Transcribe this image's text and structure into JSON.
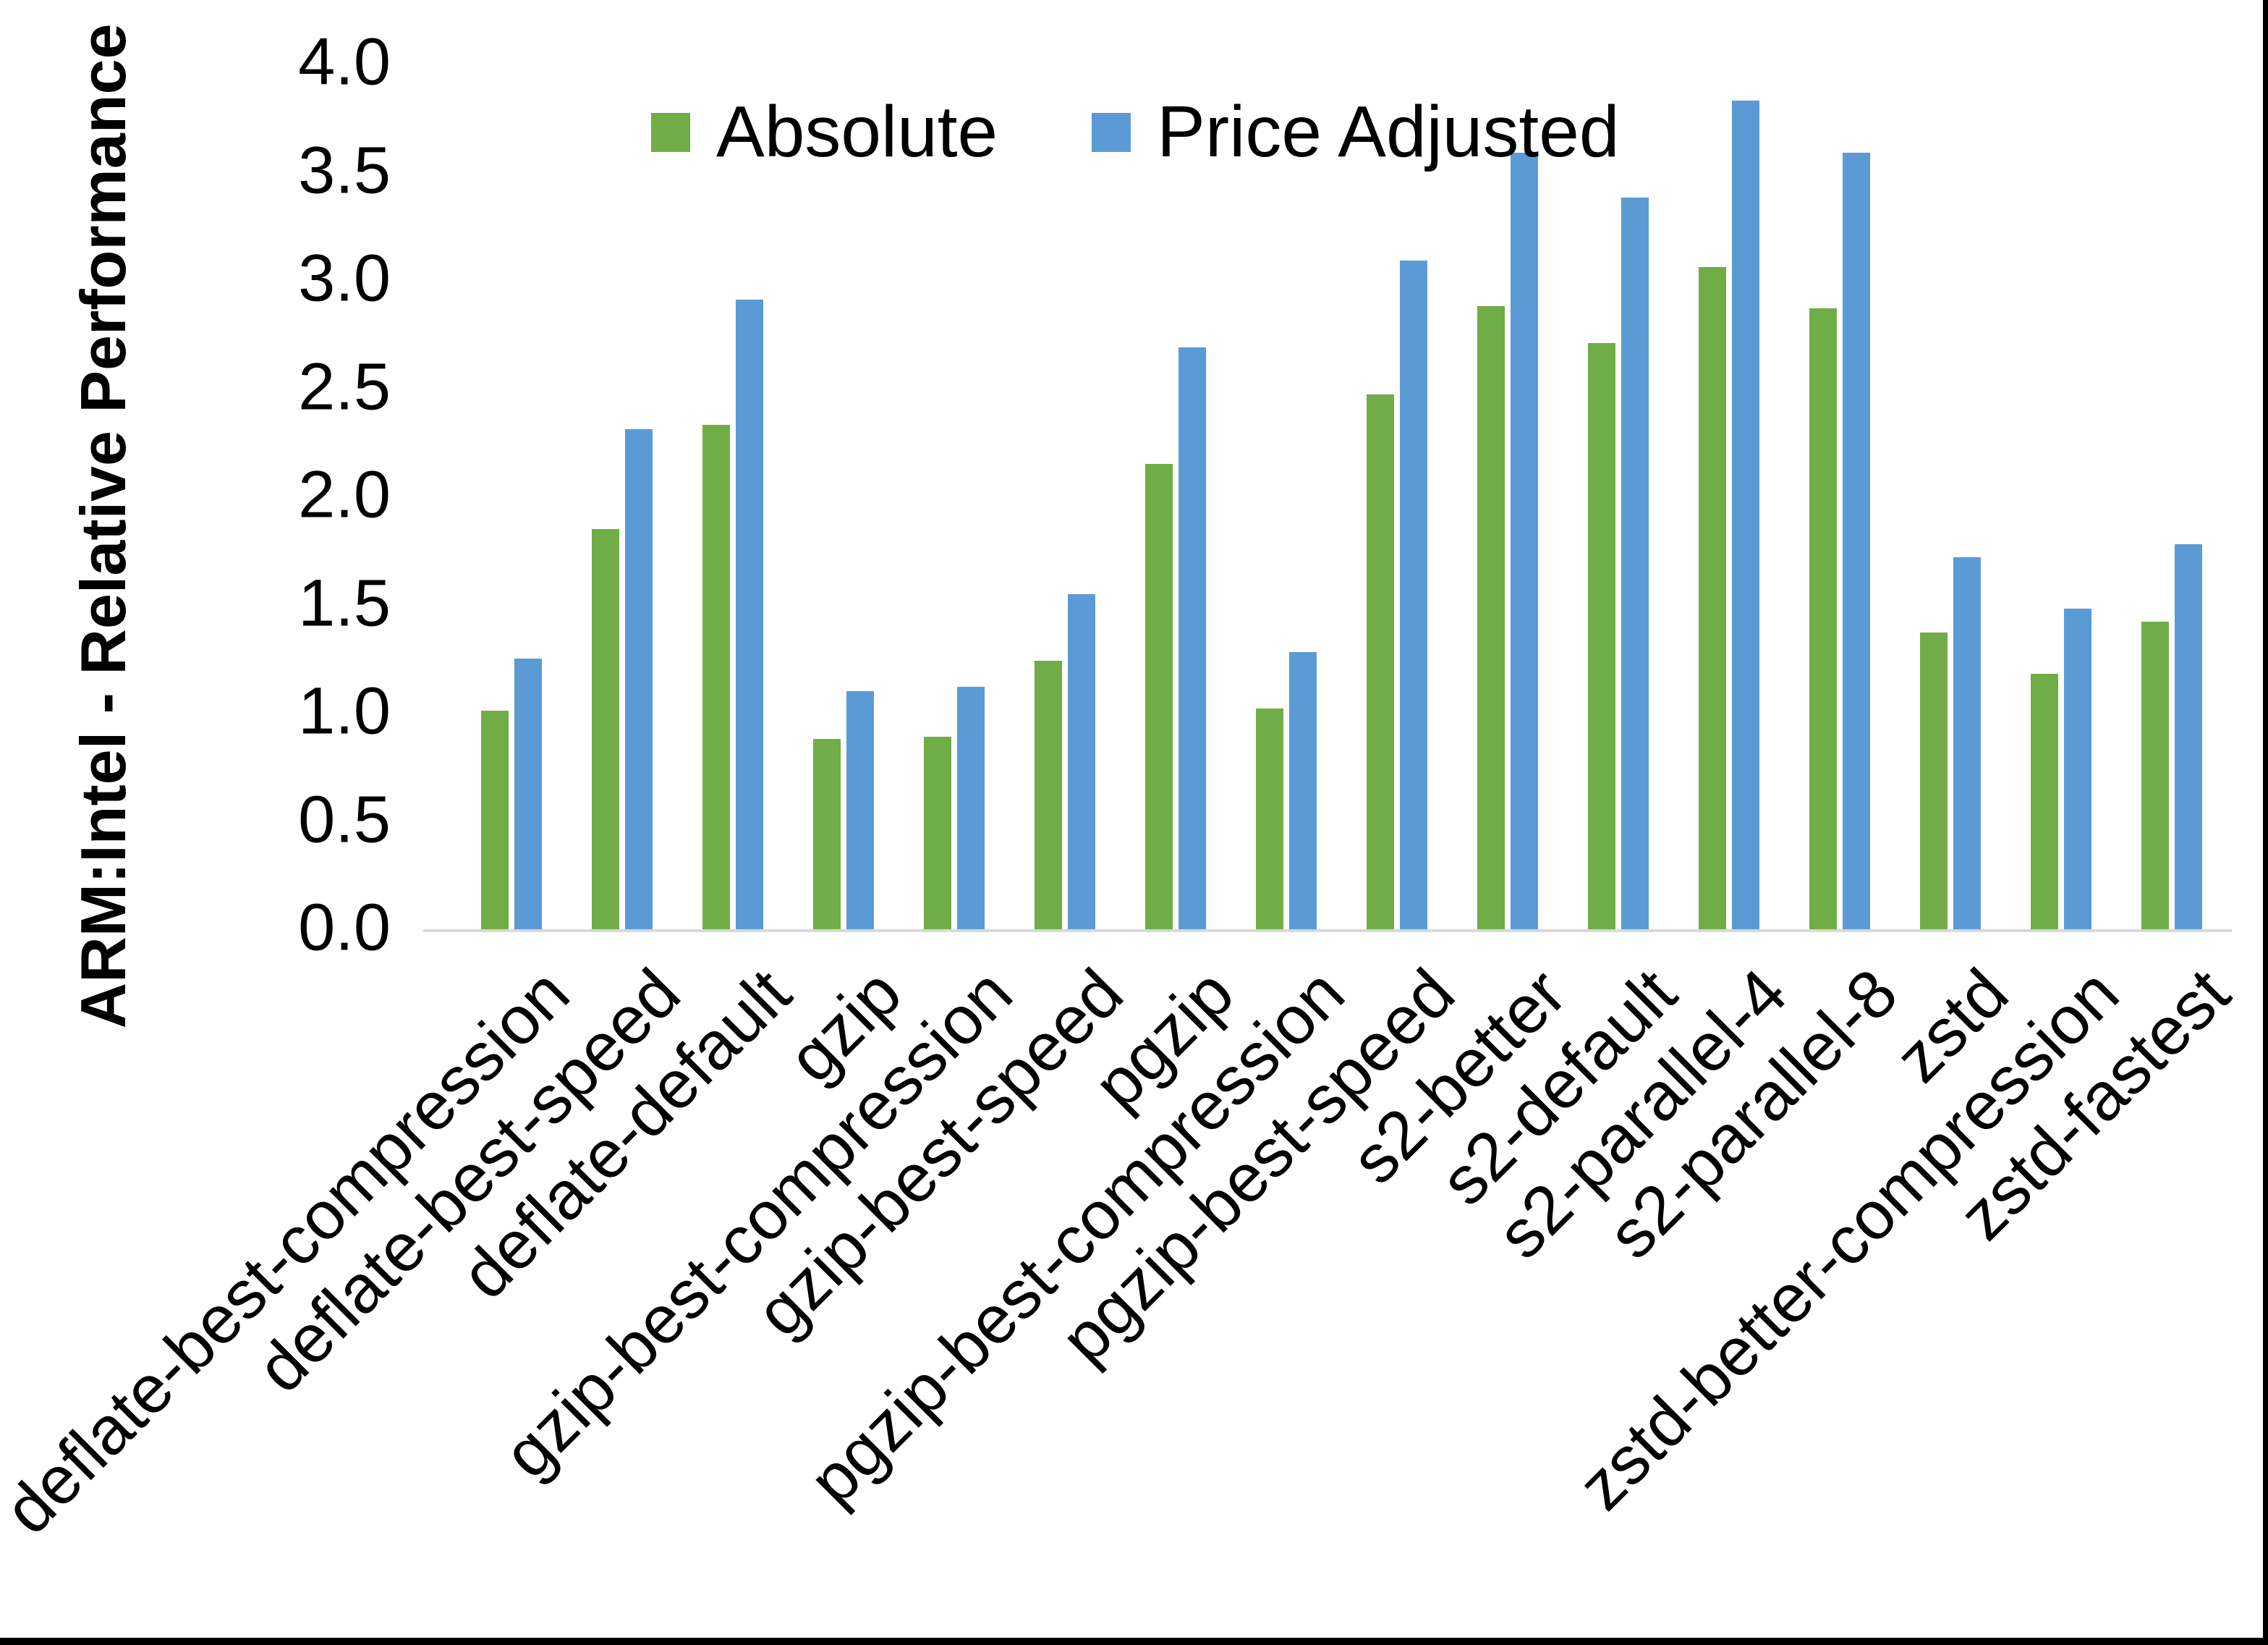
{
  "chart_data": {
    "type": "bar",
    "title": "",
    "xlabel": "",
    "ylabel": "ARM:Intel - Relative Performance",
    "ylim": [
      0.0,
      4.0
    ],
    "y_ticks": [
      "0.0",
      "0.5",
      "1.0",
      "1.5",
      "2.0",
      "2.5",
      "3.0",
      "3.5",
      "4.0"
    ],
    "grid": false,
    "legend_position": "top-center",
    "categories": [
      "deflate-best-compression",
      "deflate-best-speed",
      "deflate-default",
      "gzip",
      "gzip-best-compression",
      "gzip-best-speed",
      "pgzip",
      "pgzip-best-compression",
      "pgzip-best-speed",
      "s2-better",
      "s2-default",
      "s2-parallel-4",
      "s2-parallel-8",
      "zstd",
      "zstd-better-compression",
      "zstd-fastest"
    ],
    "series": [
      {
        "name": "Absolute",
        "color": "#70AD47",
        "values": [
          1.01,
          1.85,
          2.33,
          0.88,
          0.89,
          1.24,
          2.15,
          1.02,
          2.47,
          2.88,
          2.71,
          3.06,
          2.87,
          1.37,
          1.18,
          1.42
        ]
      },
      {
        "name": "Price Adjusted",
        "color": "#5B9BD5",
        "values": [
          1.25,
          2.31,
          2.91,
          1.1,
          1.12,
          1.55,
          2.69,
          1.28,
          3.09,
          3.59,
          3.38,
          3.83,
          3.59,
          1.72,
          1.48,
          1.78
        ]
      }
    ]
  },
  "colors": {
    "background": "#FFFFFF",
    "axis_line": "#D9D9D9",
    "text": "#000000",
    "frame": "#000000"
  }
}
